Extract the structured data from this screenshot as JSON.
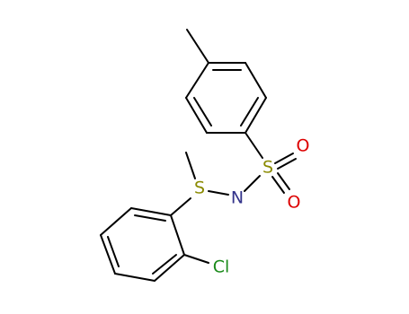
{
  "atoms": [
    {
      "label": "S"
    },
    {
      "label": "N"
    },
    {
      "label": "S"
    },
    {
      "label": "O"
    },
    {
      "label": "O"
    },
    {
      "label": "Cl"
    }
  ]
}
